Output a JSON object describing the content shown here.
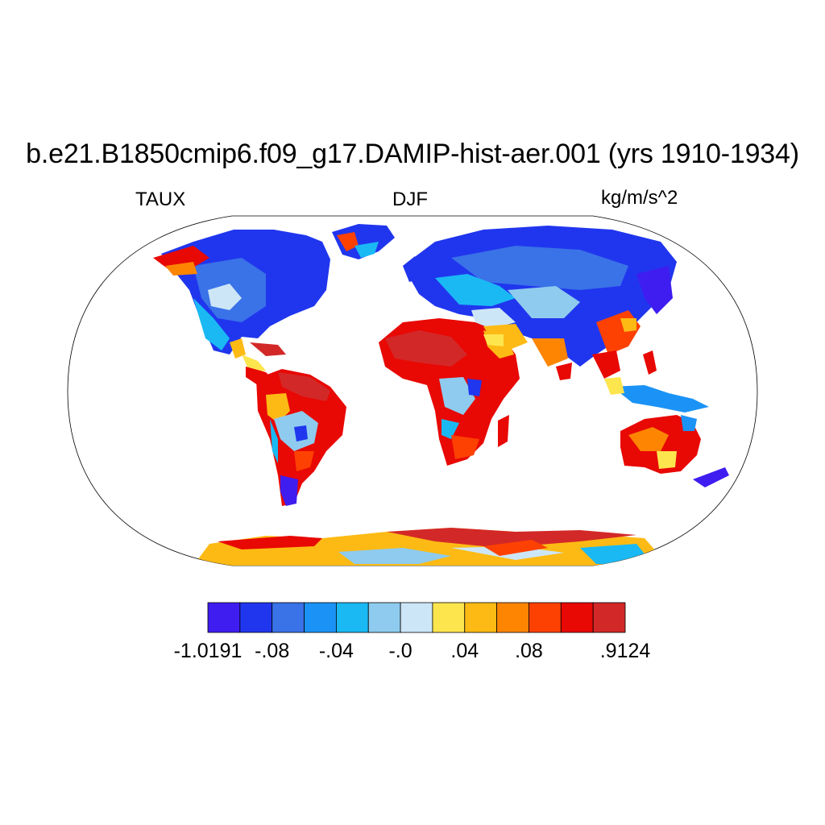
{
  "title": "b.e21.B1850cmip6.f09_g17.DAMIP-hist-aer.001 (yrs 1910-1934)",
  "left_label": "TAUX",
  "center_label": "DJF",
  "right_label": "kg/m/s^2",
  "colorbar": {
    "colors": [
      "#3f1df0",
      "#2036ee",
      "#3a72e8",
      "#1b93f6",
      "#1ab9f4",
      "#8ecbee",
      "#cde6f7",
      "#fde54e",
      "#fdba14",
      "#fd8502",
      "#fd4102",
      "#e80804",
      "#d32828"
    ],
    "labels": [
      {
        "text": "-1.0191",
        "edge": 0
      },
      {
        "text": "-.08",
        "edge": 2
      },
      {
        "text": "-.04",
        "edge": 4
      },
      {
        "text": "-.0",
        "edge": 6
      },
      {
        "text": ".04",
        "edge": 8
      },
      {
        "text": ".08",
        "edge": 10
      },
      {
        "text": ".9124",
        "edge": 13
      }
    ]
  },
  "regions": [
    {
      "name": "north-america",
      "color": "#3a72e8"
    },
    {
      "name": "south-america",
      "color": "#fd4102"
    },
    {
      "name": "africa",
      "color": "#e80804"
    },
    {
      "name": "eurasia",
      "color": "#2036ee"
    },
    {
      "name": "australia",
      "color": "#fd8502"
    },
    {
      "name": "antarctica",
      "color": "#fdba14"
    },
    {
      "name": "greenland",
      "color": "#1b93f6"
    }
  ]
}
